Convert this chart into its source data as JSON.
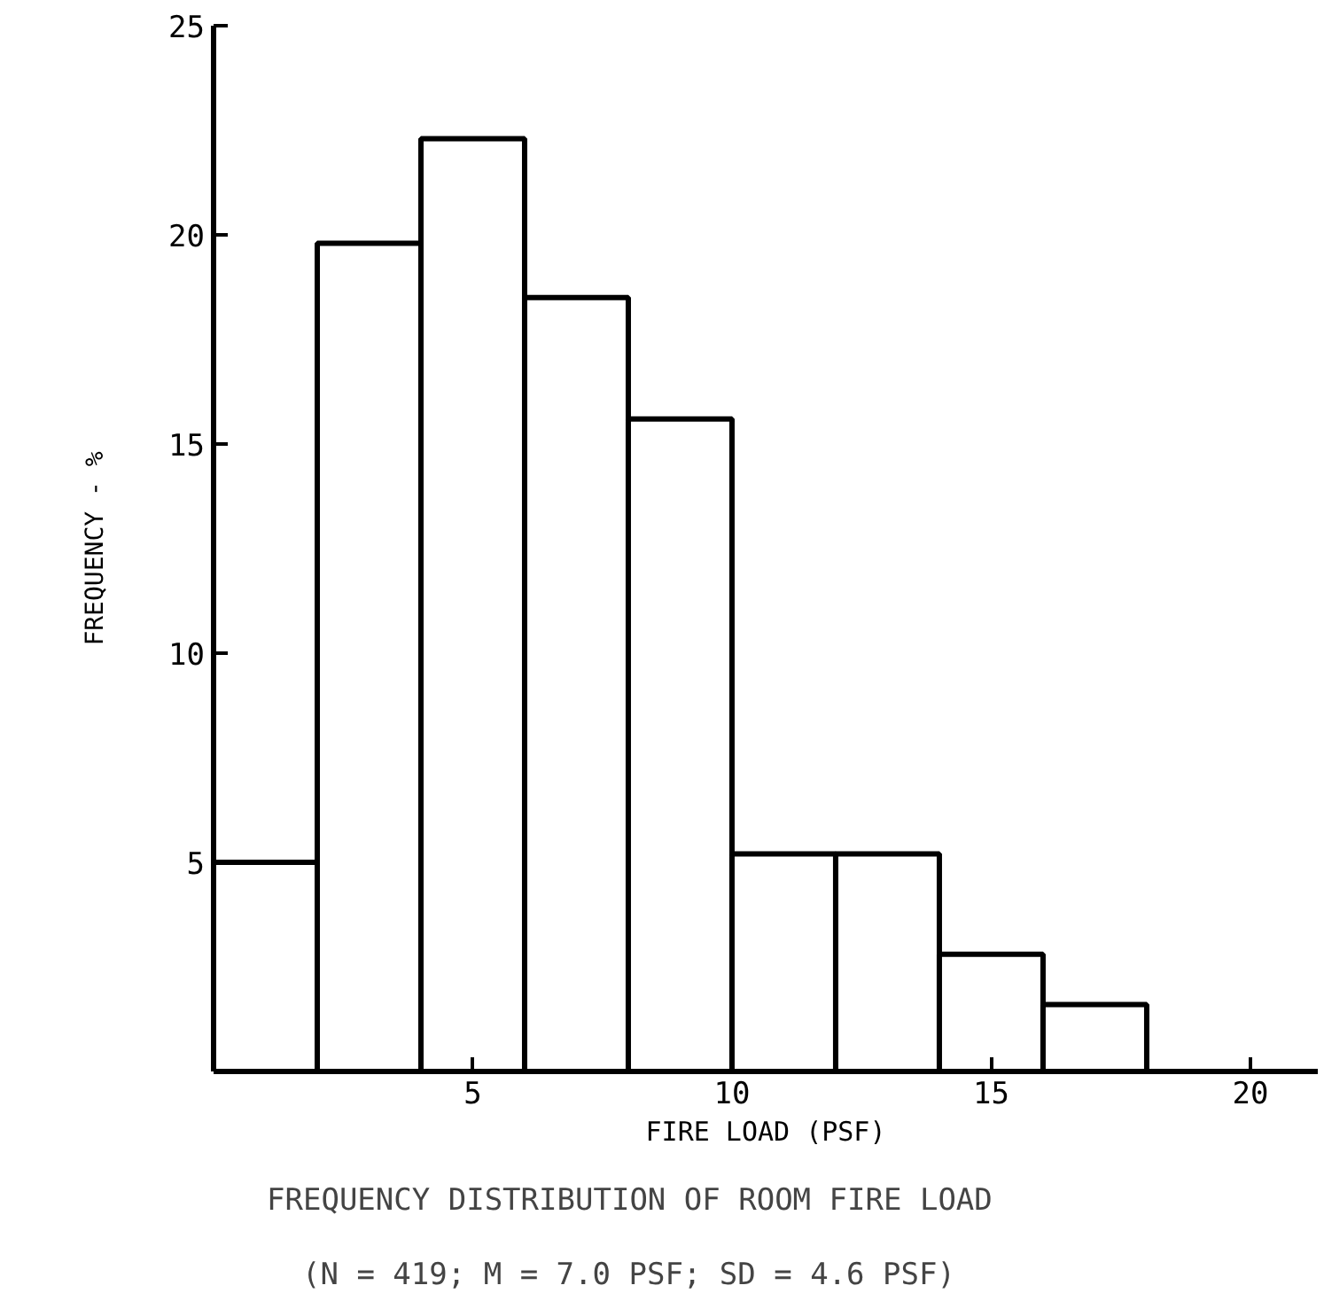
{
  "chart_data": {
    "type": "histogram",
    "title": "FREQUENCY DISTRIBUTION OF ROOM FIRE LOAD",
    "subtitle": "(N = 419; M = 7.0 PSF; SD = 4.6 PSF)",
    "xlabel": "FIRE LOAD (PSF)",
    "ylabel": "FREQUENCY - %",
    "bins": [
      0,
      2,
      4,
      6,
      8,
      10,
      12,
      14,
      16,
      18
    ],
    "values": [
      5.0,
      19.8,
      22.3,
      18.5,
      15.6,
      5.2,
      5.2,
      2.8,
      1.6
    ],
    "color": "#ffffff",
    "xlim": [
      0,
      21.3
    ],
    "ylim": [
      0,
      25
    ],
    "xticks": [
      5,
      10,
      15,
      20
    ],
    "yticks": [
      5,
      10,
      15,
      20,
      25
    ],
    "grid": false
  }
}
